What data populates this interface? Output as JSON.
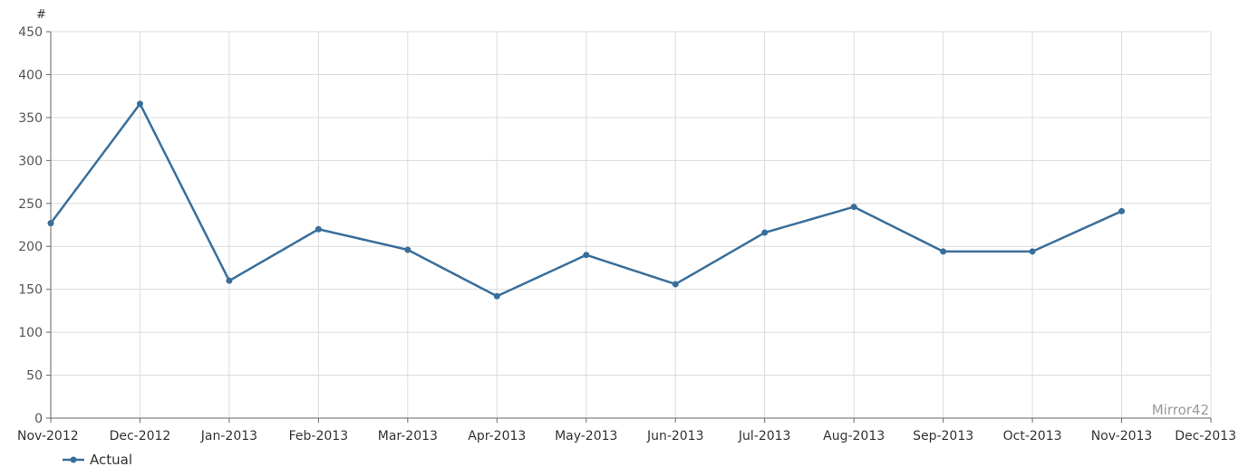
{
  "chart_data": {
    "type": "line",
    "ylabel": "#",
    "xlabel": "",
    "ylim": [
      0,
      450
    ],
    "yticks": [
      0,
      50,
      100,
      150,
      200,
      250,
      300,
      350,
      400,
      450
    ],
    "categories": [
      "Nov-2012",
      "Dec-2012",
      "Jan-2013",
      "Feb-2013",
      "Mar-2013",
      "Apr-2013",
      "May-2013",
      "Jun-2013",
      "Jul-2013",
      "Aug-2013",
      "Sep-2013",
      "Oct-2013",
      "Nov-2013",
      "Dec-2013"
    ],
    "series": [
      {
        "name": "Actual",
        "color": "#3a6e9a",
        "values": [
          227,
          366,
          160,
          220,
          196,
          142,
          190,
          156,
          216,
          246,
          194,
          194,
          241,
          null
        ]
      }
    ],
    "grid": true,
    "legend_position": "bottom-left",
    "watermark": "Mirror42"
  }
}
